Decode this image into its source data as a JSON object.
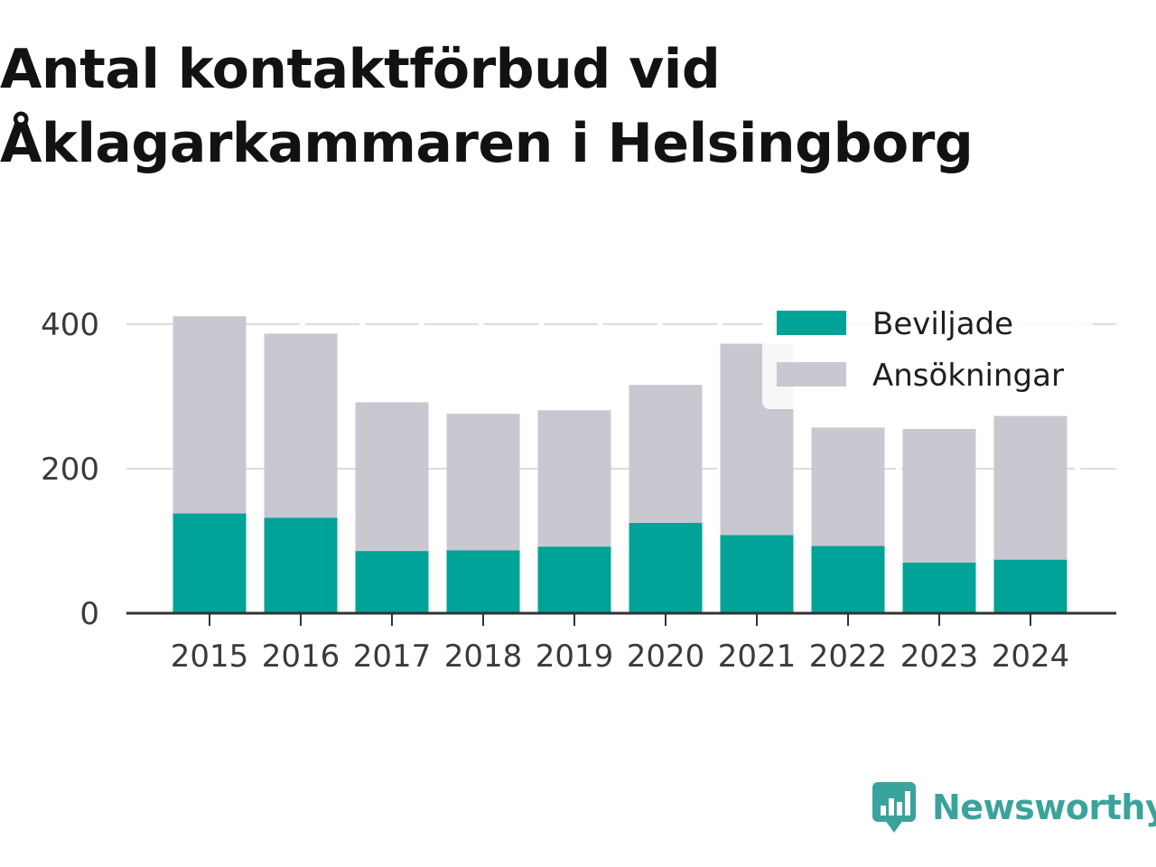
{
  "title": "Antal kontaktförbud vid Åklagarkammaren i Helsingborg",
  "brand": {
    "name": "Newsworthy",
    "icon": "newsworthy-logo-icon",
    "color": "#3aa39b"
  },
  "colors": {
    "beviljade": "#00a397",
    "ansokningar": "#c9c8d0",
    "grid": "#dcdcdc",
    "axis": "#333333"
  },
  "chart_data": {
    "type": "bar",
    "stacked_overlay": true,
    "title": "Antal kontaktförbud vid Åklagarkammaren i Helsingborg",
    "categories": [
      "2015",
      "2016",
      "2017",
      "2018",
      "2019",
      "2020",
      "2021",
      "2022",
      "2023",
      "2024"
    ],
    "series": [
      {
        "name": "Ansökningar",
        "color": "#c9c8d0",
        "values": [
          411,
          387,
          292,
          276,
          281,
          316,
          373,
          257,
          255,
          273
        ]
      },
      {
        "name": "Beviljade",
        "color": "#00a397",
        "values": [
          138,
          132,
          86,
          87,
          92,
          125,
          108,
          93,
          70,
          74
        ]
      }
    ],
    "yticks": [
      "0",
      "200",
      "400"
    ],
    "ylim": [
      0,
      440
    ],
    "grid": true,
    "legend": {
      "position": "top-right",
      "entries": [
        "Beviljade",
        "Ansökningar"
      ]
    }
  }
}
